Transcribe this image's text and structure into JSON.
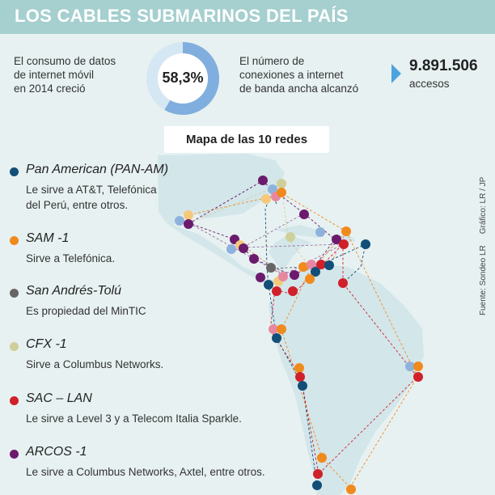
{
  "title": "LOS CABLES SUBMARINOS DEL PAÍS",
  "stat_mobile": {
    "text_lines": [
      "El consumo de datos",
      "de internet móvil",
      "en 2014 creció"
    ],
    "value_label": "58,3%",
    "fraction": 0.583
  },
  "stat_broadband": {
    "text_lines": [
      "El número de",
      "conexiones a internet",
      "de banda ancha alcanzó"
    ],
    "value": "9.891.506",
    "unit": "accesos"
  },
  "map_title": "Mapa de las 10 redes",
  "networks": [
    {
      "name": "Pan American (PAN-AM)",
      "desc_lines": [
        "Le sirve a AT&T, Telefónica",
        "del Perú, entre otros."
      ],
      "color": "#124e78"
    },
    {
      "name": "SAM -1",
      "desc_lines": [
        "Sirve a Telefónica."
      ],
      "color": "#f08a1c"
    },
    {
      "name": "San Andrés-Tolú",
      "desc_lines": [
        "Es propiedad del MinTIC"
      ],
      "color": "#666666"
    },
    {
      "name": "CFX -1",
      "desc_lines": [
        "Sirve a Columbus Networks."
      ],
      "color": "#cfcf9a"
    },
    {
      "name": "SAC – LAN",
      "desc_lines": [
        "Le sirve a Level 3 y a Telecom Italia Sparkle."
      ],
      "color": "#d0202a"
    },
    {
      "name": "ARCOS -1",
      "desc_lines": [
        "Le sirve a Columbus Networks, Axtel, entre otros."
      ],
      "color": "#6b1a6e"
    }
  ],
  "credit_source": "Fuente: Sondeo LR",
  "credit_graphic": "Gráfico: LR / JP",
  "colors": {
    "title_bar": "#a6cfcf",
    "panel": "#e7f1f1",
    "land": "#d3e6ea",
    "donut_fill": "#80aede",
    "donut_track": "#d6e7f4",
    "accent_arrow": "#4aa3df"
  }
}
